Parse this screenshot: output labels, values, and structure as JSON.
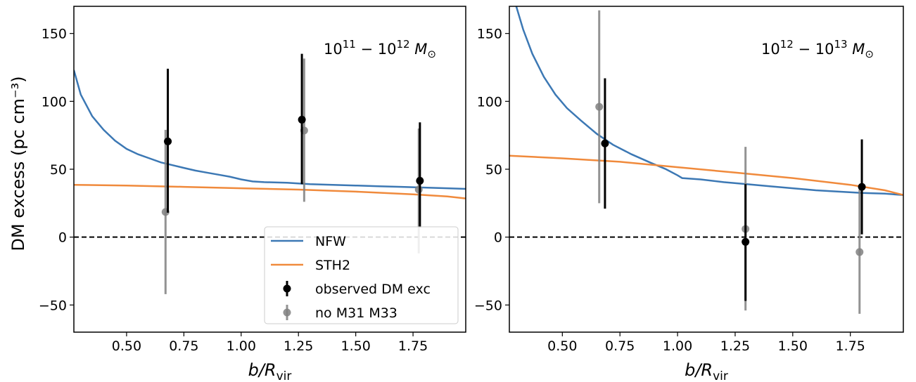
{
  "chart_data": [
    {
      "type": "line",
      "panel": "left",
      "annotation": {
        "base1": "10",
        "exp1": "11",
        "base2": "10",
        "exp2": "12",
        "unit": "M",
        "sub": "⊙"
      },
      "xlabel": {
        "main": "b",
        "sub": "vir",
        "prefix": "/R"
      },
      "ylabel": "DM excess (pc cm⁻³)",
      "xlim": [
        0.27,
        1.98
      ],
      "ylim": [
        -70,
        170
      ],
      "xticks": [
        0.5,
        0.75,
        1.0,
        1.25,
        1.5,
        1.75
      ],
      "xtick_labels": [
        "0.50",
        "0.75",
        "1.00",
        "1.25",
        "1.50",
        "1.75"
      ],
      "yticks": [
        -50,
        0,
        50,
        100,
        150
      ],
      "ytick_labels": [
        "−50",
        "0",
        "50",
        "100",
        "150"
      ],
      "reference_line": {
        "y": 0,
        "style": "dashed"
      },
      "legend": {
        "placement": "lower-right",
        "entries": [
          "NFW",
          "STH2",
          "observed DM exc",
          "no M31 M33"
        ]
      },
      "series": [
        {
          "name": "NFW",
          "kind": "line",
          "color": "#3c78b4",
          "x": [
            0.27,
            0.3,
            0.35,
            0.4,
            0.45,
            0.5,
            0.55,
            0.6,
            0.65,
            0.7,
            0.75,
            0.8,
            0.85,
            0.9,
            0.95,
            1.0,
            1.05,
            1.1,
            1.2,
            1.3,
            1.4,
            1.5,
            1.6,
            1.7,
            1.8,
            1.9,
            1.98
          ],
          "y": [
            123,
            105,
            89,
            79,
            71,
            65,
            61,
            58,
            55,
            53,
            51,
            49,
            47.5,
            46,
            44.5,
            42.5,
            41,
            40.5,
            40,
            39,
            38.5,
            38,
            37.5,
            37,
            36.5,
            36,
            35.5
          ]
        },
        {
          "name": "STH2",
          "kind": "line",
          "color": "#f08a3c",
          "x": [
            0.27,
            0.5,
            0.75,
            1.0,
            1.25,
            1.5,
            1.75,
            1.9,
            1.98
          ],
          "y": [
            38.5,
            38,
            37,
            36,
            35,
            33.5,
            31.5,
            30,
            28.5
          ]
        },
        {
          "name": "observed DM exc",
          "kind": "errorbar",
          "color": "#000000",
          "x": [
            0.68,
            1.265,
            1.78
          ],
          "y": [
            70.5,
            86.5,
            41.5
          ],
          "yerr_low": [
            52.5,
            47.5,
            34.5
          ],
          "yerr_high": [
            53.5,
            48.5,
            43.0
          ]
        },
        {
          "name": "no M31 M33",
          "kind": "errorbar",
          "color": "#808080",
          "x": [
            0.67,
            1.275,
            1.775
          ],
          "y": [
            18.5,
            78.5,
            35.0
          ],
          "yerr_low": [
            60.5,
            52.5,
            47.0
          ],
          "yerr_high": [
            60.5,
            53.0,
            45.0
          ]
        }
      ]
    },
    {
      "type": "line",
      "panel": "right",
      "annotation": {
        "base1": "10",
        "exp1": "12",
        "base2": "10",
        "exp2": "13",
        "unit": "M",
        "sub": "⊙"
      },
      "xlabel": {
        "main": "b",
        "sub": "vir",
        "prefix": "/R"
      },
      "ylabel": "",
      "xlim": [
        0.27,
        1.98
      ],
      "ylim": [
        -70,
        170
      ],
      "xticks": [
        0.5,
        0.75,
        1.0,
        1.25,
        1.5,
        1.75
      ],
      "xtick_labels": [
        "0.50",
        "0.75",
        "1.00",
        "1.25",
        "1.50",
        "1.75"
      ],
      "yticks": [
        -50,
        0,
        50,
        100,
        150
      ],
      "ytick_labels": [
        "−50",
        "0",
        "50",
        "100",
        "150"
      ],
      "reference_line": {
        "y": 0,
        "style": "dashed"
      },
      "series": [
        {
          "name": "NFW",
          "kind": "line",
          "color": "#3c78b4",
          "x": [
            0.3,
            0.33,
            0.37,
            0.42,
            0.47,
            0.52,
            0.58,
            0.65,
            0.72,
            0.8,
            0.88,
            0.95,
            1.0,
            1.02,
            1.1,
            1.2,
            1.3,
            1.4,
            1.5,
            1.6,
            1.7,
            1.8,
            1.9,
            1.98
          ],
          "y": [
            170,
            153,
            135,
            118,
            105,
            95,
            86,
            76,
            68,
            61,
            55,
            50,
            45.5,
            43.5,
            42.5,
            40.5,
            39,
            37.5,
            36,
            34.5,
            33.5,
            32.5,
            32,
            31
          ]
        },
        {
          "name": "STH2",
          "kind": "line",
          "color": "#f08a3c",
          "x": [
            0.27,
            0.5,
            0.75,
            1.0,
            1.25,
            1.5,
            1.75,
            1.9,
            1.98
          ],
          "y": [
            60,
            58,
            55.5,
            51.5,
            47.5,
            43.5,
            38.5,
            34.5,
            31
          ]
        },
        {
          "name": "observed DM exc",
          "kind": "errorbar",
          "color": "#000000",
          "x": [
            0.685,
            1.295,
            1.8
          ],
          "y": [
            69.0,
            -3.5,
            37.0
          ],
          "yerr_low": [
            48.0,
            43.5,
            35.0
          ],
          "yerr_high": [
            48.0,
            42.5,
            35.0
          ]
        },
        {
          "name": "no M31 M33",
          "kind": "errorbar",
          "color": "#808080",
          "x": [
            0.66,
            1.295,
            1.79
          ],
          "y": [
            96.0,
            6.0,
            -11.0
          ],
          "yerr_low": [
            71.0,
            60.0,
            45.5
          ],
          "yerr_high": [
            71.0,
            60.5,
            46.0
          ]
        }
      ]
    }
  ]
}
